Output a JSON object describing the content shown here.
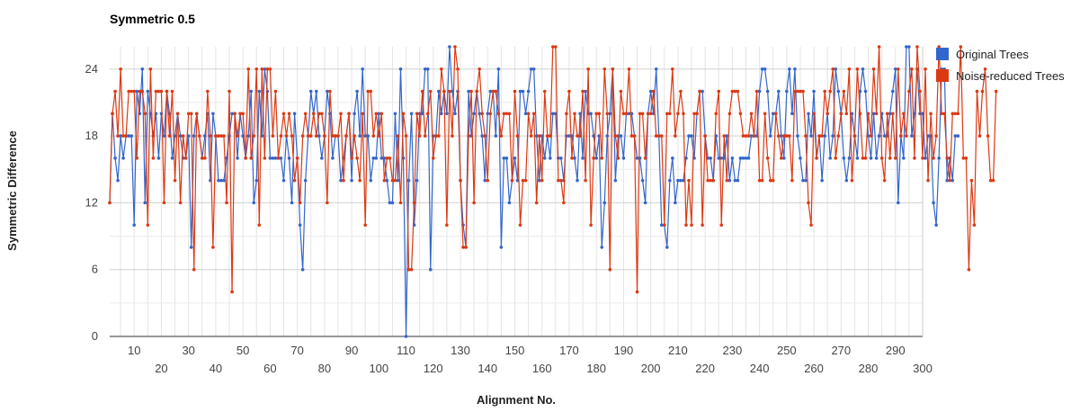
{
  "chart_data": {
    "type": "line",
    "title": "Symmetric 0.5",
    "xlabel": "Alignment No.",
    "ylabel": "Symmetric Difference",
    "xlim": [
      1,
      300
    ],
    "ylim": [
      0,
      26
    ],
    "yticks": [
      0,
      6,
      12,
      18,
      24
    ],
    "xticks_top": [
      10,
      30,
      50,
      70,
      90,
      110,
      130,
      150,
      170,
      190,
      210,
      230,
      250,
      270,
      290
    ],
    "xticks_bottom": [
      20,
      40,
      60,
      80,
      100,
      120,
      140,
      160,
      180,
      200,
      220,
      240,
      260,
      280,
      300
    ],
    "grid": true,
    "legend_position": "right",
    "series": [
      {
        "name": "Original Trees",
        "color": "#3366cc",
        "values": [
          12,
          20,
          16,
          14,
          18,
          16,
          18,
          18,
          18,
          10,
          22,
          20,
          24,
          12,
          22,
          20,
          18,
          20,
          16,
          20,
          18,
          22,
          20,
          16,
          18,
          20,
          18,
          16,
          16,
          18,
          8,
          18,
          20,
          18,
          16,
          18,
          20,
          14,
          20,
          18,
          14,
          14,
          14,
          16,
          18,
          20,
          20,
          16,
          20,
          18,
          16,
          18,
          22,
          12,
          14,
          22,
          18,
          24,
          22,
          16,
          16,
          16,
          16,
          16,
          14,
          18,
          16,
          12,
          20,
          16,
          10,
          6,
          14,
          18,
          22,
          20,
          22,
          18,
          16,
          18,
          22,
          20,
          16,
          18,
          18,
          14,
          16,
          18,
          20,
          14,
          20,
          22,
          18,
          24,
          18,
          18,
          14,
          16,
          16,
          20,
          16,
          16,
          14,
          12,
          12,
          20,
          14,
          24,
          16,
          0,
          14,
          20,
          10,
          14,
          20,
          20,
          24,
          24,
          6,
          18,
          18,
          22,
          20,
          22,
          20,
          26,
          22,
          20,
          22,
          14,
          10,
          8,
          22,
          18,
          20,
          22,
          20,
          18,
          14,
          20,
          22,
          22,
          18,
          24,
          8,
          16,
          16,
          12,
          14,
          16,
          14,
          22,
          22,
          20,
          22,
          24,
          24,
          18,
          14,
          18,
          16,
          18,
          16,
          20,
          20,
          16,
          16,
          14,
          18,
          18,
          18,
          16,
          14,
          20,
          16,
          22,
          20,
          20,
          18,
          16,
          18,
          8,
          12,
          18,
          20,
          24,
          14,
          18,
          18,
          16,
          20,
          20,
          20,
          18,
          16,
          16,
          14,
          12,
          20,
          22,
          20,
          24,
          18,
          10,
          10,
          8,
          14,
          16,
          12,
          14,
          14,
          14,
          16,
          18,
          18,
          16,
          20,
          22,
          22,
          18,
          16,
          16,
          14,
          18,
          16,
          16,
          16,
          18,
          14,
          16,
          14,
          14,
          16,
          16,
          16,
          16,
          18,
          18,
          18,
          22,
          24,
          24,
          22,
          18,
          20,
          20,
          22,
          18,
          16,
          22,
          24,
          20,
          24,
          18,
          16,
          14,
          14,
          20,
          18,
          22,
          16,
          18,
          14,
          18,
          20,
          16,
          18,
          24,
          22,
          20,
          16,
          14,
          16,
          20,
          18,
          16,
          22,
          24,
          22,
          18,
          16,
          20,
          16,
          18,
          20,
          18,
          18,
          20,
          22,
          24,
          12,
          18,
          16,
          26,
          26,
          18,
          20,
          24,
          20,
          20,
          16,
          18,
          18,
          12,
          10,
          16,
          24,
          24,
          14,
          16,
          14,
          18,
          18
        ]
      },
      {
        "name": "Noise-reduced Trees",
        "color": "#dc3912",
        "values": [
          12,
          20,
          22,
          18,
          24,
          18,
          18,
          22,
          22,
          22,
          16,
          22,
          22,
          20,
          10,
          24,
          16,
          22,
          22,
          22,
          12,
          22,
          18,
          22,
          14,
          20,
          12,
          18,
          16,
          20,
          20,
          6,
          20,
          18,
          16,
          16,
          22,
          18,
          8,
          18,
          18,
          18,
          18,
          12,
          22,
          4,
          20,
          18,
          20,
          20,
          16,
          24,
          16,
          18,
          24,
          10,
          24,
          16,
          24,
          24,
          18,
          22,
          16,
          18,
          20,
          18,
          20,
          18,
          14,
          16,
          12,
          18,
          20,
          18,
          18,
          20,
          18,
          20,
          20,
          18,
          12,
          22,
          18,
          18,
          18,
          20,
          14,
          18,
          20,
          16,
          18,
          16,
          14,
          20,
          10,
          22,
          22,
          18,
          20,
          18,
          20,
          14,
          16,
          16,
          14,
          14,
          18,
          12,
          20,
          18,
          6,
          6,
          12,
          20,
          18,
          22,
          18,
          20,
          22,
          16,
          18,
          18,
          24,
          22,
          10,
          22,
          18,
          26,
          24,
          14,
          8,
          8,
          18,
          22,
          12,
          22,
          24,
          20,
          18,
          14,
          20,
          22,
          22,
          20,
          18,
          20,
          20,
          20,
          14,
          22,
          18,
          10,
          14,
          14,
          20,
          18,
          20,
          12,
          18,
          14,
          22,
          18,
          18,
          26,
          26,
          14,
          14,
          12,
          20,
          22,
          16,
          20,
          18,
          18,
          22,
          14,
          24,
          10,
          16,
          20,
          20,
          16,
          24,
          20,
          6,
          24,
          18,
          16,
          22,
          20,
          20,
          24,
          18,
          18,
          4,
          20,
          20,
          16,
          20,
          20,
          22,
          18,
          18,
          18,
          10,
          20,
          20,
          24,
          18,
          20,
          22,
          20,
          10,
          14,
          10,
          20,
          20,
          22,
          10,
          18,
          14,
          14,
          14,
          20,
          22,
          10,
          18,
          14,
          20,
          22,
          22,
          22,
          20,
          18,
          18,
          18,
          20,
          18,
          22,
          14,
          14,
          20,
          16,
          14,
          14,
          20,
          18,
          16,
          18,
          18,
          18,
          14,
          22,
          22,
          22,
          22,
          18,
          12,
          10,
          20,
          16,
          18,
          18,
          22,
          20,
          22,
          24,
          16,
          18,
          20,
          22,
          20,
          24,
          14,
          18,
          24,
          20,
          16,
          16,
          20,
          18,
          24,
          20,
          26,
          16,
          14,
          20,
          16,
          20,
          16,
          24,
          18,
          20,
          18,
          22,
          24,
          16,
          26,
          22,
          16,
          24,
          14,
          20,
          16,
          18,
          26,
          20,
          20,
          16,
          14,
          20,
          20,
          20,
          26,
          16,
          16,
          6,
          14,
          10,
          22,
          18,
          22,
          24,
          18,
          14,
          14,
          22
        ]
      }
    ]
  }
}
